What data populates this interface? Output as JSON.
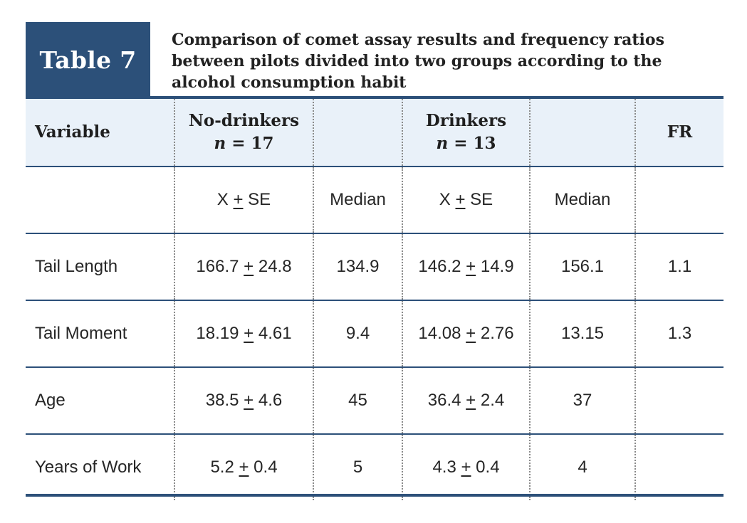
{
  "table_label": "Table 7",
  "caption": "Comparison of comet assay results and frequency ratios between pilots divided into two groups according to the alcohol consumption habit",
  "header": {
    "variable": "Variable",
    "group1_name": "No-drinkers",
    "group1_n_symbol": "n",
    "group1_n_value": " = 17",
    "group2_name": "Drinkers",
    "group2_n_symbol": "n",
    "group2_n_value": " = 13",
    "fr": "FR"
  },
  "subheader": {
    "stat1": "X",
    "stat1_pm": "+",
    "stat1_se": "SE",
    "median1": "Median",
    "stat2": "X",
    "stat2_pm": "+",
    "stat2_se": "SE",
    "median2": "Median"
  },
  "rows": [
    {
      "variable": "Tail Length",
      "g1_mean": "166.7",
      "g1_se": "24.8",
      "g1_median": "134.9",
      "g2_mean": "146.2",
      "g2_se": "14.9",
      "g2_median": "156.1",
      "fr": "1.1"
    },
    {
      "variable": "Tail Moment",
      "g1_mean": "18.19",
      "g1_se": "4.61",
      "g1_median": "9.4",
      "g2_mean": "14.08",
      "g2_se": "2.76",
      "g2_median": "13.15",
      "fr": "1.3"
    },
    {
      "variable": "Age",
      "g1_mean": "38.5",
      "g1_se": "4.6",
      "g1_median": "45",
      "g2_mean": "36.4",
      "g2_se": "2.4",
      "g2_median": "37",
      "fr": ""
    },
    {
      "variable": "Years of Work",
      "g1_mean": "5.2",
      "g1_se": "0.4",
      "g1_median": "5",
      "g2_mean": "4.3",
      "g2_se": "0.4",
      "g2_median": "4",
      "fr": ""
    }
  ],
  "pm_symbol": "+",
  "colors": {
    "accent": "#2c5079",
    "header_background": "#e9f1f9"
  }
}
